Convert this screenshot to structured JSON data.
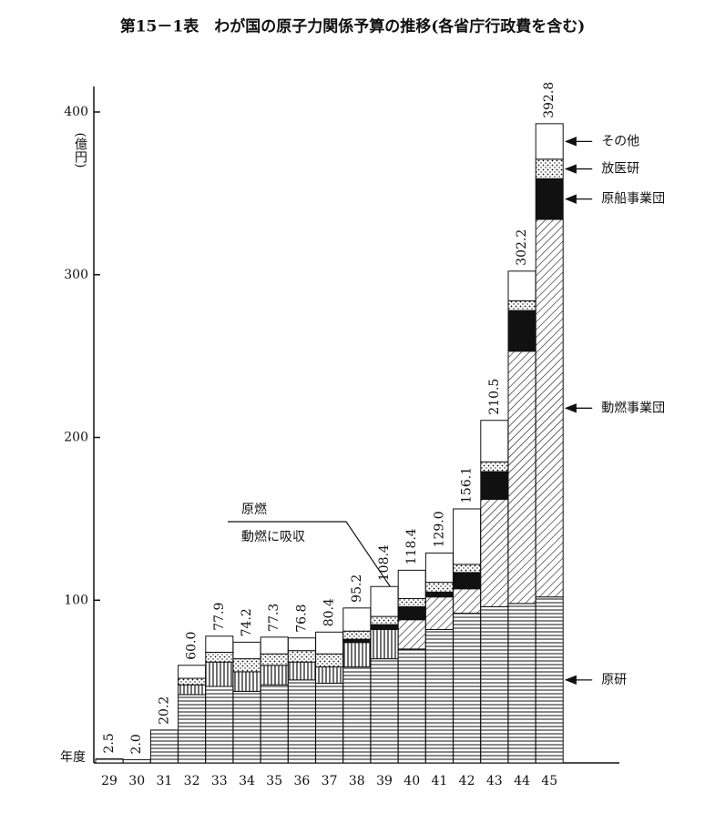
{
  "chart_data": {
    "type": "stacked-bar",
    "title": "第15－1表　わが国の原子力関係予算の推移(各省庁行政費を含む)",
    "y_label": "(億円)",
    "x_label": "年度",
    "annotation": "動燃に吸収",
    "categories": [
      "29",
      "30",
      "31",
      "32",
      "33",
      "34",
      "35",
      "36",
      "37",
      "38",
      "39",
      "40",
      "41",
      "42",
      "43",
      "44",
      "45"
    ],
    "ylim": [
      0,
      420
    ],
    "yticks": [
      100,
      200,
      300,
      400
    ],
    "series": [
      {
        "name": "原研",
        "pattern": "hlines",
        "values": [
          2.5,
          2.0,
          20.2,
          42,
          47,
          44,
          48,
          51,
          49,
          59,
          64,
          70,
          82,
          92,
          96,
          98,
          102
        ]
      },
      {
        "name": "原燃",
        "pattern": "vlines",
        "values": [
          null,
          null,
          null,
          6,
          15,
          12,
          12,
          11,
          10,
          15,
          18,
          null,
          null,
          null,
          null,
          null,
          null
        ]
      },
      {
        "name": "動燃事業団",
        "pattern": "diag",
        "values": [
          null,
          null,
          null,
          null,
          null,
          null,
          null,
          null,
          null,
          null,
          null,
          18,
          20,
          15,
          66,
          155,
          232
        ]
      },
      {
        "name": "原船事業団",
        "pattern": "solid",
        "values": [
          null,
          null,
          null,
          null,
          null,
          null,
          null,
          null,
          null,
          2,
          3,
          8,
          3,
          10,
          17,
          25,
          25
        ]
      },
      {
        "name": "放医研",
        "pattern": "dots",
        "values": [
          null,
          null,
          null,
          4,
          6,
          8,
          7,
          7,
          8,
          5,
          5,
          5,
          6,
          5,
          6,
          6,
          12
        ]
      },
      {
        "name": "その他",
        "pattern": "blank",
        "values": [
          null,
          null,
          null,
          8,
          9.9,
          10.2,
          10.3,
          7.8,
          13.4,
          14.2,
          18.4,
          17.4,
          18,
          34.1,
          25.5,
          18.2,
          21.8
        ]
      }
    ],
    "totals": {
      "values": [
        2.5,
        2,
        20.2,
        60,
        77.9,
        74.2,
        77.3,
        76.8,
        80.4,
        95.2,
        108.4,
        118.4,
        129,
        156.1,
        210.5,
        302.2,
        392.8
      ],
      "value_labels": [
        "2.5",
        "2.0",
        "20.2",
        "60.0",
        "77.9",
        "74.2",
        "77.3",
        "76.8",
        "80.4",
        "95.2",
        "108.4",
        "118.4",
        "129.0",
        "156.1",
        "210.5",
        "302.2",
        "392.8"
      ]
    }
  }
}
